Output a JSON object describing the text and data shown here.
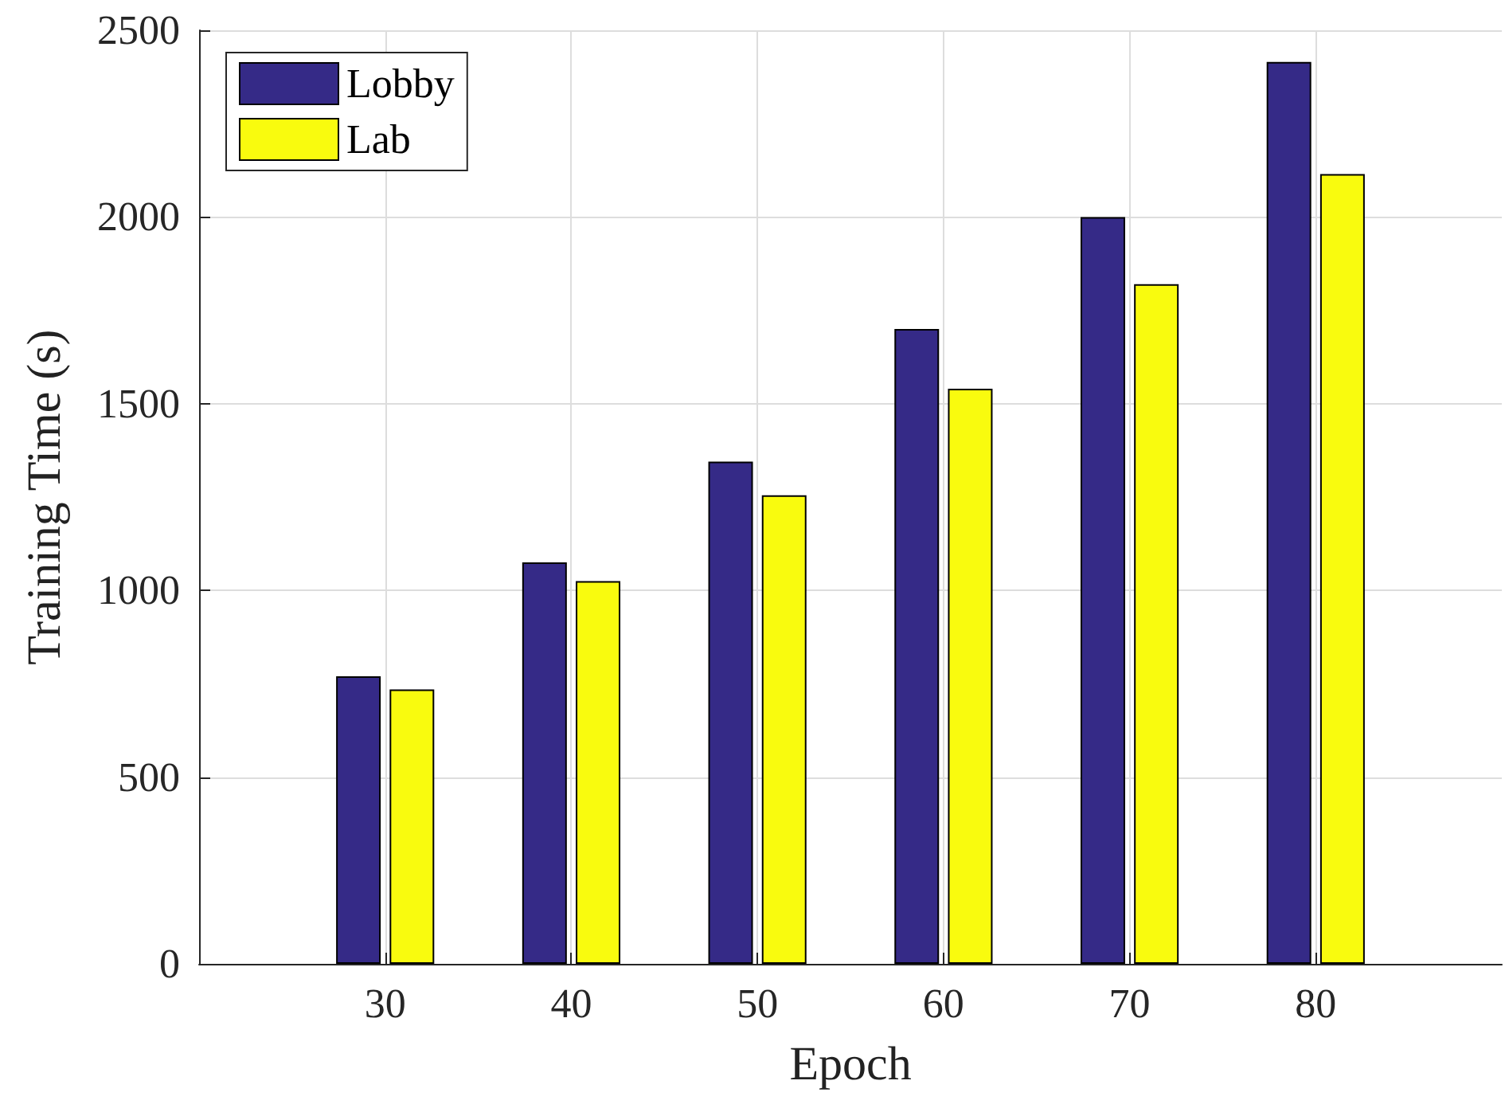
{
  "chart_data": {
    "type": "bar",
    "xlabel": "Epoch",
    "ylabel": "Training Time (s)",
    "x": [
      30,
      40,
      50,
      60,
      70,
      80
    ],
    "series": [
      {
        "name": "Lobby",
        "color": "#352a87",
        "values": [
          770,
          1075,
          1345,
          1700,
          2000,
          2415
        ]
      },
      {
        "name": "Lab",
        "color": "#f9fb0e",
        "values": [
          735,
          1025,
          1255,
          1540,
          1820,
          2115
        ]
      }
    ],
    "xlim": [
      20,
      90
    ],
    "xticks": [
      30,
      40,
      50,
      60,
      70,
      80
    ],
    "ylim": [
      0,
      2500
    ],
    "yticks": [
      0,
      500,
      1000,
      1500,
      2000,
      2500
    ],
    "grid": true,
    "legend": "top left"
  }
}
